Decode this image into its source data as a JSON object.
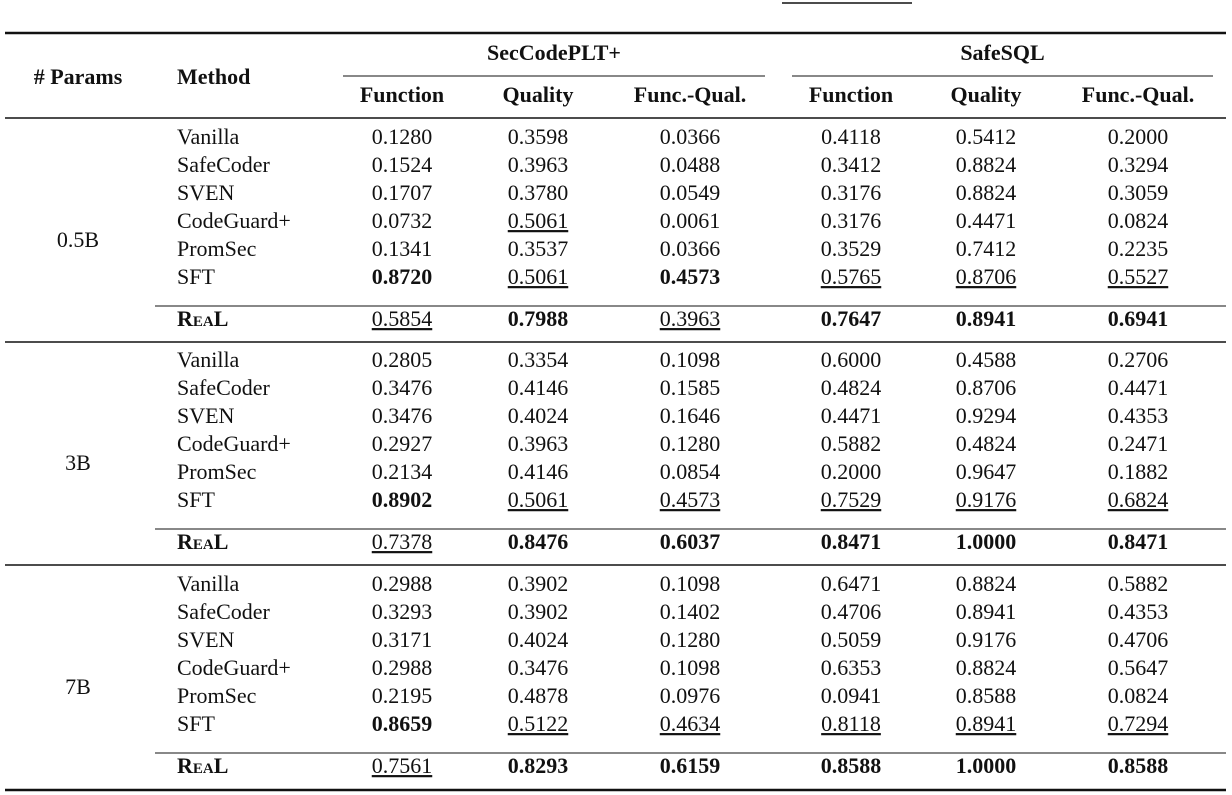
{
  "table": {
    "header": {
      "params": "# Params",
      "method": "Method",
      "groups": [
        {
          "name": "SecCodePLT+",
          "columns": [
            "Function",
            "Quality",
            "Func.-Qual."
          ]
        },
        {
          "name": "SafeSQL",
          "columns": [
            "Function",
            "Quality",
            "Func.-Qual."
          ]
        }
      ]
    },
    "groups": [
      {
        "params": "0.5B",
        "rows": [
          {
            "method": "Vanilla",
            "values": [
              "0.1280",
              "0.3598",
              "0.0366",
              "0.4118",
              "0.5412",
              "0.2000"
            ]
          },
          {
            "method": "SafeCoder",
            "values": [
              "0.1524",
              "0.3963",
              "0.0488",
              "0.3412",
              "0.8824",
              "0.3294"
            ]
          },
          {
            "method": "SVEN",
            "values": [
              "0.1707",
              "0.3780",
              "0.0549",
              "0.3176",
              "0.8824",
              "0.3059"
            ]
          },
          {
            "method": "CodeGuard+",
            "values": [
              "0.0732",
              "0.5061",
              "0.0061",
              "0.3176",
              "0.4471",
              "0.0824"
            ],
            "underline": [
              1
            ]
          },
          {
            "method": "PromSec",
            "values": [
              "0.1341",
              "0.3537",
              "0.0366",
              "0.3529",
              "0.7412",
              "0.2235"
            ]
          },
          {
            "method": "SFT",
            "values": [
              "0.8720",
              "0.5061",
              "0.4573",
              "0.5765",
              "0.8706",
              "0.5527"
            ],
            "bold": [
              0,
              2
            ],
            "underline": [
              1,
              3,
              4,
              5
            ]
          },
          {
            "method": "ReaL",
            "values": [
              "0.5854",
              "0.7988",
              "0.3963",
              "0.7647",
              "0.8941",
              "0.6941"
            ],
            "bold": [
              1,
              3,
              4,
              5
            ],
            "underline": [
              0,
              2
            ]
          }
        ]
      },
      {
        "params": "3B",
        "rows": [
          {
            "method": "Vanilla",
            "values": [
              "0.2805",
              "0.3354",
              "0.1098",
              "0.6000",
              "0.4588",
              "0.2706"
            ]
          },
          {
            "method": "SafeCoder",
            "values": [
              "0.3476",
              "0.4146",
              "0.1585",
              "0.4824",
              "0.8706",
              "0.4471"
            ]
          },
          {
            "method": "SVEN",
            "values": [
              "0.3476",
              "0.4024",
              "0.1646",
              "0.4471",
              "0.9294",
              "0.4353"
            ]
          },
          {
            "method": "CodeGuard+",
            "values": [
              "0.2927",
              "0.3963",
              "0.1280",
              "0.5882",
              "0.4824",
              "0.2471"
            ]
          },
          {
            "method": "PromSec",
            "values": [
              "0.2134",
              "0.4146",
              "0.0854",
              "0.2000",
              "0.9647",
              "0.1882"
            ]
          },
          {
            "method": "SFT",
            "values": [
              "0.8902",
              "0.5061",
              "0.4573",
              "0.7529",
              "0.9176",
              "0.6824"
            ],
            "bold": [
              0
            ],
            "underline": [
              1,
              2,
              3,
              4,
              5
            ]
          },
          {
            "method": "ReaL",
            "values": [
              "0.7378",
              "0.8476",
              "0.6037",
              "0.8471",
              "1.0000",
              "0.8471"
            ],
            "bold": [
              1,
              2,
              3,
              4,
              5
            ],
            "underline": [
              0
            ]
          }
        ]
      },
      {
        "params": "7B",
        "rows": [
          {
            "method": "Vanilla",
            "values": [
              "0.2988",
              "0.3902",
              "0.1098",
              "0.6471",
              "0.8824",
              "0.5882"
            ]
          },
          {
            "method": "SafeCoder",
            "values": [
              "0.3293",
              "0.3902",
              "0.1402",
              "0.4706",
              "0.8941",
              "0.4353"
            ]
          },
          {
            "method": "SVEN",
            "values": [
              "0.3171",
              "0.4024",
              "0.1280",
              "0.5059",
              "0.9176",
              "0.4706"
            ]
          },
          {
            "method": "CodeGuard+",
            "values": [
              "0.2988",
              "0.3476",
              "0.1098",
              "0.6353",
              "0.8824",
              "0.5647"
            ]
          },
          {
            "method": "PromSec",
            "values": [
              "0.2195",
              "0.4878",
              "0.0976",
              "0.0941",
              "0.8588",
              "0.0824"
            ]
          },
          {
            "method": "SFT",
            "values": [
              "0.8659",
              "0.5122",
              "0.4634",
              "0.8118",
              "0.8941",
              "0.7294"
            ],
            "bold": [
              0
            ],
            "underline": [
              1,
              2,
              3,
              4,
              5
            ]
          },
          {
            "method": "ReaL",
            "values": [
              "0.7561",
              "0.8293",
              "0.6159",
              "0.8588",
              "1.0000",
              "0.8588"
            ],
            "bold": [
              1,
              2,
              3,
              4,
              5
            ],
            "underline": [
              0
            ]
          }
        ]
      }
    ]
  }
}
